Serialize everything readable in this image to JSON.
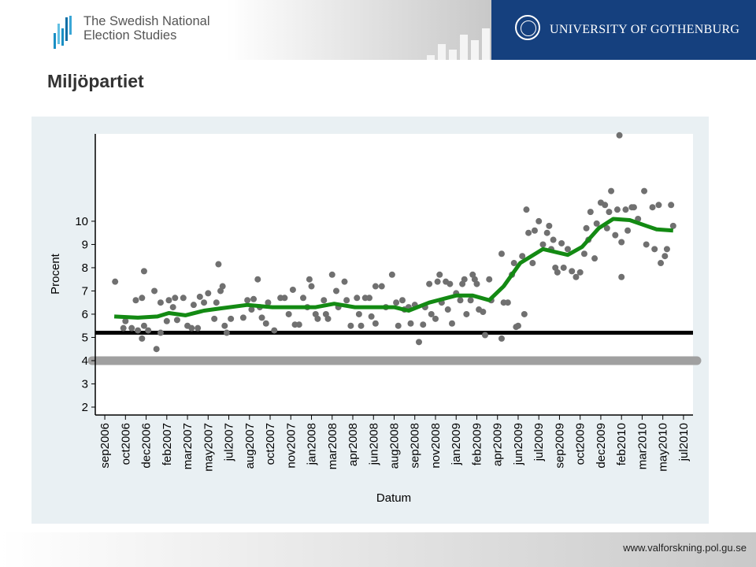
{
  "header": {
    "org_line1": "The Swedish National",
    "org_line2": "Election Studies",
    "university": "UNIVERSITY OF GOTHENBURG"
  },
  "slide_title": "Miljöpartiet",
  "footer": {
    "url": "www.valforskning.pol.gu.se"
  },
  "colors": {
    "points": "#707070",
    "smooth": "#138a13",
    "ref_black": "#000000",
    "ref_grey": "#a0a0a0",
    "panel": "#e9f0f3",
    "brand": "#15407e"
  },
  "chart_data": {
    "type": "scatter",
    "xlabel": "Datum",
    "ylabel": "Procent",
    "xticks": [
      "sep2006",
      "oct2006",
      "dec2006",
      "feb2007",
      "mar2007",
      "may2007",
      "jul2007",
      "aug2007",
      "oct2007",
      "nov2007",
      "jan2008",
      "mar2008",
      "apr2008",
      "jun2008",
      "aug2008",
      "sep2008",
      "nov2008",
      "jan2009",
      "feb2009",
      "apr2009",
      "jun2009",
      "jul2009",
      "sep2009",
      "oct2009",
      "dec2009",
      "feb2010",
      "mar2010",
      "may2010",
      "jul2010"
    ],
    "yticks": [
      2,
      3,
      4,
      5,
      6,
      7,
      8,
      9,
      10
    ],
    "xlim": [
      -0.46,
      28.46
    ],
    "ylim": [
      1.66,
      13.76
    ],
    "reference_lines": [
      {
        "y": 5.2,
        "color": "black"
      },
      {
        "y": 4.0,
        "color": "grey"
      }
    ],
    "points": {
      "x": [
        0.5,
        0.9,
        1.0,
        1.3,
        1.5,
        1.6,
        1.8,
        1.8,
        1.9,
        1.9,
        2.1,
        2.4,
        2.5,
        2.7,
        2.7,
        3.0,
        3.1,
        3.3,
        3.4,
        3.5,
        3.8,
        4.0,
        4.2,
        4.3,
        4.5,
        4.6,
        4.8,
        5.0,
        5.3,
        5.4,
        5.5,
        5.6,
        5.7,
        5.8,
        5.9,
        6.1,
        6.7,
        6.9,
        7.1,
        7.2,
        7.4,
        7.5,
        7.6,
        7.8,
        7.9,
        8.2,
        8.5,
        8.7,
        8.9,
        9.1,
        9.2,
        9.4,
        9.6,
        9.8,
        9.9,
        10.0,
        10.2,
        10.3,
        10.6,
        10.7,
        10.8,
        11.0,
        11.2,
        11.3,
        11.6,
        11.7,
        11.9,
        12.2,
        12.3,
        12.4,
        12.6,
        12.8,
        12.9,
        13.1,
        13.1,
        13.4,
        13.6,
        13.9,
        14.1,
        14.2,
        14.4,
        14.5,
        14.7,
        14.8,
        15.0,
        15.2,
        15.4,
        15.5,
        15.7,
        15.8,
        16.0,
        16.1,
        16.2,
        16.3,
        16.5,
        16.6,
        16.7,
        16.8,
        17.0,
        17.2,
        17.3,
        17.4,
        17.5,
        17.7,
        17.8,
        17.9,
        18.0,
        18.1,
        18.3,
        18.4,
        18.6,
        18.7,
        19.2,
        19.2,
        19.3,
        19.5,
        19.7,
        19.8,
        19.9,
        20.0,
        20.2,
        20.3,
        20.4,
        20.5,
        20.7,
        20.8,
        21.0,
        21.2,
        21.4,
        21.5,
        21.6,
        21.7,
        21.8,
        21.9,
        22.1,
        22.2,
        22.4,
        22.6,
        22.8,
        23.0,
        23.2,
        23.3,
        23.4,
        23.5,
        23.7,
        23.8,
        24.0,
        24.2,
        24.3,
        24.4,
        24.5,
        24.7,
        24.8,
        24.9,
        25.0,
        25.0,
        25.2,
        25.3,
        25.5,
        25.6,
        25.8,
        26.1,
        26.2,
        26.5,
        26.6,
        26.8,
        26.9,
        27.1,
        27.2,
        27.4,
        27.5
      ],
      "y": [
        7.4,
        5.4,
        5.7,
        5.4,
        6.6,
        5.3,
        6.7,
        4.95,
        7.85,
        5.5,
        5.3,
        7.0,
        4.5,
        5.2,
        6.5,
        5.7,
        6.6,
        6.3,
        6.7,
        5.75,
        6.7,
        5.5,
        5.4,
        6.4,
        5.4,
        6.75,
        6.5,
        6.9,
        5.8,
        6.5,
        8.15,
        7.0,
        7.2,
        5.5,
        5.2,
        5.8,
        5.85,
        6.6,
        6.2,
        6.65,
        7.5,
        6.3,
        5.85,
        5.6,
        6.5,
        5.3,
        6.7,
        6.7,
        6.0,
        7.05,
        5.55,
        5.55,
        6.7,
        6.3,
        7.5,
        7.2,
        6.0,
        5.8,
        6.6,
        6.0,
        5.8,
        7.7,
        7.0,
        6.3,
        7.4,
        6.6,
        5.5,
        6.7,
        6.0,
        5.5,
        6.7,
        6.7,
        5.9,
        7.2,
        5.6,
        7.2,
        6.3,
        7.7,
        6.5,
        5.5,
        6.6,
        6.2,
        6.3,
        5.6,
        6.4,
        4.8,
        5.55,
        6.3,
        7.3,
        6.0,
        5.8,
        7.4,
        7.7,
        6.5,
        7.4,
        6.2,
        7.3,
        5.6,
        6.9,
        6.6,
        7.3,
        7.5,
        6.0,
        6.6,
        7.7,
        7.5,
        7.3,
        6.2,
        6.1,
        5.1,
        7.5,
        6.6,
        4.95,
        8.6,
        6.5,
        6.5,
        7.7,
        8.2,
        5.45,
        5.5,
        8.5,
        6.0,
        10.5,
        9.5,
        8.2,
        9.6,
        10.0,
        9.0,
        9.5,
        9.8,
        8.8,
        9.2,
        8.0,
        7.8,
        9.05,
        8.0,
        8.8,
        7.85,
        7.6,
        7.8,
        8.6,
        9.7,
        9.2,
        10.4,
        8.4,
        9.9,
        10.8,
        10.7,
        9.7,
        10.4,
        11.3,
        9.4,
        10.5,
        13.7,
        7.6,
        9.1,
        10.5,
        9.6,
        10.6,
        10.6,
        10.1,
        11.3,
        9.0,
        10.6,
        8.8,
        10.7,
        8.2,
        8.5,
        8.8,
        10.7,
        9.8
      ]
    },
    "smooth": {
      "x": [
        0.46,
        1.6,
        2.55,
        3.1,
        3.9,
        4.8,
        5.6,
        6.9,
        8.1,
        10.2,
        11.1,
        12.1,
        14.0,
        14.7,
        15.7,
        17.0,
        17.8,
        18.6,
        19.3,
        20.1,
        21.2,
        22.4,
        23.1,
        23.9,
        24.6,
        25.4,
        26.2,
        26.7,
        27.5
      ],
      "y": [
        5.9,
        5.85,
        5.9,
        6.05,
        5.95,
        6.15,
        6.25,
        6.4,
        6.3,
        6.3,
        6.45,
        6.3,
        6.3,
        6.15,
        6.5,
        6.8,
        6.8,
        6.6,
        7.2,
        8.2,
        8.8,
        8.55,
        8.9,
        9.7,
        10.1,
        10.05,
        9.8,
        9.65,
        9.6
      ]
    }
  }
}
